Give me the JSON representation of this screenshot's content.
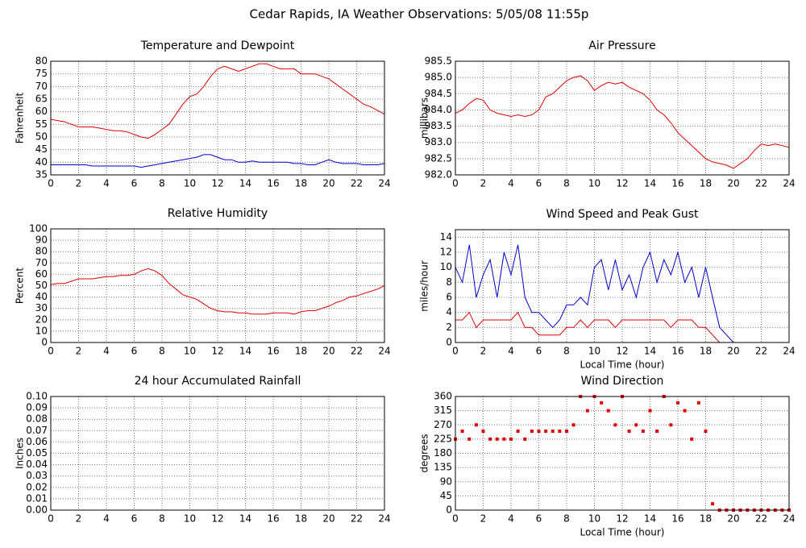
{
  "title": "Cedar Rapids, IA Weather Observations: 5/05/08 11:55p",
  "chart_data": [
    {
      "type": "line",
      "title": "Temperature and Dewpoint",
      "ylabel": "Fahrenheit",
      "x": [
        0,
        0.5,
        1,
        1.5,
        2,
        2.5,
        3,
        3.5,
        4,
        4.5,
        5,
        5.5,
        6,
        6.5,
        7,
        7.5,
        8,
        8.5,
        9,
        9.5,
        10,
        10.5,
        11,
        11.5,
        12,
        12.5,
        13,
        13.5,
        14,
        14.5,
        15,
        15.5,
        16,
        16.5,
        17,
        17.5,
        18,
        18.5,
        19,
        19.5,
        20,
        20.5,
        21,
        21.5,
        22,
        22.5,
        23,
        23.5,
        24
      ],
      "series": [
        {
          "color": "#e00000",
          "values": [
            57,
            56.5,
            56,
            55,
            54,
            54,
            54,
            53.5,
            53,
            52.5,
            52.5,
            52,
            51,
            50,
            49.5,
            51,
            53,
            55,
            59,
            63,
            66,
            67,
            70,
            74,
            77,
            78,
            77,
            76,
            77,
            78,
            79,
            79,
            78,
            77,
            77,
            77,
            75,
            75,
            75,
            74,
            73,
            71,
            69,
            67,
            65,
            63,
            62,
            60.5,
            59
          ]
        },
        {
          "color": "#0000d0",
          "values": [
            39,
            39,
            39,
            39,
            39,
            39,
            38.5,
            38.5,
            38.5,
            38.5,
            38.5,
            38.5,
            38.5,
            38,
            38.5,
            39,
            39.5,
            40,
            40.5,
            41,
            41.5,
            42,
            43,
            43,
            42,
            41,
            41,
            40,
            40,
            40.5,
            40,
            40,
            40,
            40,
            40,
            39.5,
            39.5,
            39,
            39,
            40,
            41,
            40,
            39.5,
            39.5,
            39.5,
            39,
            39,
            39,
            39.5
          ]
        }
      ],
      "xlim": [
        0,
        24
      ],
      "xticks": [
        0,
        2,
        4,
        6,
        8,
        10,
        12,
        14,
        16,
        18,
        20,
        22,
        24
      ],
      "ylim": [
        35,
        80
      ],
      "yticks": [
        35,
        40,
        45,
        50,
        55,
        60,
        65,
        70,
        75,
        80
      ],
      "grid": true
    },
    {
      "type": "line",
      "title": "Air Pressure",
      "ylabel": "millibars",
      "x": [
        0,
        0.5,
        1,
        1.5,
        2,
        2.5,
        3,
        3.5,
        4,
        4.5,
        5,
        5.5,
        6,
        6.5,
        7,
        7.5,
        8,
        8.5,
        9,
        9.5,
        10,
        10.5,
        11,
        11.5,
        12,
        12.5,
        13,
        13.5,
        14,
        14.5,
        15,
        15.5,
        16,
        16.5,
        17,
        17.5,
        18,
        18.5,
        19,
        19.5,
        20,
        20.5,
        21,
        21.5,
        22,
        22.5,
        23,
        23.5,
        24
      ],
      "series": [
        {
          "color": "#e00000",
          "values": [
            983.9,
            984.0,
            984.2,
            984.35,
            984.3,
            984.0,
            983.9,
            983.85,
            983.8,
            983.85,
            983.8,
            983.85,
            984.0,
            984.4,
            984.5,
            984.7,
            984.9,
            985.0,
            985.05,
            984.9,
            984.6,
            984.75,
            984.85,
            984.8,
            984.85,
            984.7,
            984.6,
            984.5,
            984.3,
            984.0,
            983.85,
            983.6,
            983.3,
            983.1,
            982.9,
            982.7,
            982.5,
            982.4,
            982.35,
            982.3,
            982.2,
            982.35,
            982.5,
            982.75,
            982.95,
            982.9,
            982.95,
            982.9,
            982.85
          ]
        }
      ],
      "xlim": [
        0,
        24
      ],
      "xticks": [
        0,
        2,
        4,
        6,
        8,
        10,
        12,
        14,
        16,
        18,
        20,
        22,
        24
      ],
      "ylim": [
        982,
        985.5
      ],
      "yticks": [
        {
          "value": 982,
          "label": "982.0"
        },
        982.5,
        {
          "value": 983,
          "label": "983.0"
        },
        983.5,
        {
          "value": 984,
          "label": "984.0"
        },
        984.5,
        {
          "value": 985,
          "label": "985.0"
        },
        985.5
      ],
      "grid": true
    },
    {
      "type": "line",
      "title": "Relative Humidity",
      "ylabel": "Percent",
      "x": [
        0,
        0.5,
        1,
        1.5,
        2,
        2.5,
        3,
        3.5,
        4,
        4.5,
        5,
        5.5,
        6,
        6.5,
        7,
        7.5,
        8,
        8.5,
        9,
        9.5,
        10,
        10.5,
        11,
        11.5,
        12,
        12.5,
        13,
        13.5,
        14,
        14.5,
        15,
        15.5,
        16,
        16.5,
        17,
        17.5,
        18,
        18.5,
        19,
        19.5,
        20,
        20.5,
        21,
        21.5,
        22,
        22.5,
        23,
        23.5,
        24
      ],
      "series": [
        {
          "color": "#e00000",
          "values": [
            51,
            52,
            52,
            54,
            56,
            56,
            56,
            57,
            58,
            58,
            59,
            59,
            60,
            63,
            65,
            63,
            59,
            52,
            47,
            42,
            40,
            38,
            34,
            30,
            28,
            27,
            27,
            26,
            26,
            25,
            25,
            25,
            26,
            26,
            26,
            25,
            27,
            28,
            28,
            30,
            32,
            35,
            37,
            40,
            41,
            43,
            45,
            47,
            50
          ]
        }
      ],
      "xlim": [
        0,
        24
      ],
      "xticks": [
        0,
        2,
        4,
        6,
        8,
        10,
        12,
        14,
        16,
        18,
        20,
        22,
        24
      ],
      "ylim": [
        0,
        100
      ],
      "yticks": [
        0,
        10,
        20,
        30,
        40,
        50,
        60,
        70,
        80,
        90,
        100
      ],
      "grid": true
    },
    {
      "type": "line",
      "title": "Wind Speed and Peak Gust",
      "ylabel": "miles/hour",
      "xlabel": "Local Time (hour)",
      "x": [
        0,
        0.5,
        1,
        1.5,
        2,
        2.5,
        3,
        3.5,
        4,
        4.5,
        5,
        5.5,
        6,
        6.5,
        7,
        7.5,
        8,
        8.5,
        9,
        9.5,
        10,
        10.5,
        11,
        11.5,
        12,
        12.5,
        13,
        13.5,
        14,
        14.5,
        15,
        15.5,
        16,
        16.5,
        17,
        17.5,
        18,
        18.5,
        19,
        19.5,
        20,
        20.5,
        21,
        21.5,
        22,
        22.5,
        23,
        23.5,
        24
      ],
      "series": [
        {
          "color": "#0000d0",
          "values": [
            10,
            8,
            13,
            6,
            9,
            11,
            6,
            12,
            9,
            13,
            6,
            4,
            4,
            3,
            2,
            3,
            5,
            5,
            6,
            5,
            10,
            11,
            7,
            11,
            7,
            9,
            6,
            10,
            12,
            8,
            11,
            9,
            12,
            8,
            10,
            6,
            10,
            6,
            2,
            1,
            0,
            0,
            0,
            0,
            0,
            0,
            0,
            0,
            0
          ]
        },
        {
          "color": "#e00000",
          "values": [
            3,
            3,
            4,
            2,
            3,
            3,
            3,
            3,
            3,
            4,
            2,
            2,
            1,
            1,
            1,
            1,
            2,
            2,
            3,
            2,
            3,
            3,
            3,
            2,
            3,
            3,
            3,
            3,
            3,
            3,
            3,
            2,
            3,
            3,
            3,
            2,
            2,
            1,
            0,
            0,
            0,
            0,
            0,
            0,
            0,
            0,
            0,
            0,
            0
          ]
        }
      ],
      "xlim": [
        0,
        24
      ],
      "xticks": [
        0,
        2,
        4,
        6,
        8,
        10,
        12,
        14,
        16,
        18,
        20,
        22,
        24
      ],
      "ylim": [
        0,
        15
      ],
      "yticks": [
        0,
        2,
        4,
        6,
        8,
        10,
        12,
        14
      ],
      "grid": true
    },
    {
      "type": "line",
      "title": "24 hour Accumulated Rainfall",
      "ylabel": "Inches",
      "x": [
        0,
        24
      ],
      "series": [
        {
          "color": "#e00000",
          "values": [
            0,
            0
          ]
        }
      ],
      "xlim": [
        0,
        24
      ],
      "xticks": [
        0,
        2,
        4,
        6,
        8,
        10,
        12,
        14,
        16,
        18,
        20,
        22,
        24
      ],
      "ylim": [
        0,
        0.1
      ],
      "yticks": [
        {
          "value": 0,
          "label": "0.00"
        },
        0.01,
        0.02,
        0.03,
        0.04,
        0.05,
        0.06,
        0.07,
        0.08,
        0.09,
        {
          "value": 0.1,
          "label": "0.10"
        }
      ],
      "grid": true
    },
    {
      "type": "scatter",
      "title": "Wind Direction",
      "ylabel": "degrees",
      "xlabel": "Local Time (hour)",
      "x": [
        0,
        0.5,
        1,
        1.5,
        2,
        2.5,
        3,
        3.5,
        4,
        4.5,
        5,
        5.5,
        6,
        6.5,
        7,
        7.5,
        8,
        8.5,
        9,
        9.5,
        10,
        10.5,
        11,
        11.5,
        12,
        12.5,
        13,
        13.5,
        14,
        14.5,
        15,
        15.5,
        16,
        16.5,
        17,
        17.5,
        18,
        18.5,
        19,
        19.5,
        20,
        20.5,
        21,
        21.5,
        22,
        22.5,
        23,
        23.5,
        24
      ],
      "series": [
        {
          "color": "#e00000",
          "values": [
            225,
            250,
            225,
            270,
            250,
            225,
            225,
            225,
            225,
            250,
            225,
            250,
            250,
            250,
            250,
            250,
            250,
            270,
            360,
            315,
            360,
            340,
            315,
            270,
            360,
            250,
            270,
            250,
            315,
            250,
            360,
            270,
            340,
            315,
            225,
            340,
            250,
            20,
            0,
            0,
            0,
            0,
            0,
            0,
            0,
            0,
            0,
            0,
            0
          ]
        }
      ],
      "xlim": [
        0,
        24
      ],
      "xticks": [
        0,
        2,
        4,
        6,
        8,
        10,
        12,
        14,
        16,
        18,
        20,
        22,
        24
      ],
      "ylim": [
        0,
        360
      ],
      "yticks": [
        0,
        45,
        90,
        135,
        180,
        225,
        270,
        315,
        360
      ],
      "grid": true
    }
  ]
}
